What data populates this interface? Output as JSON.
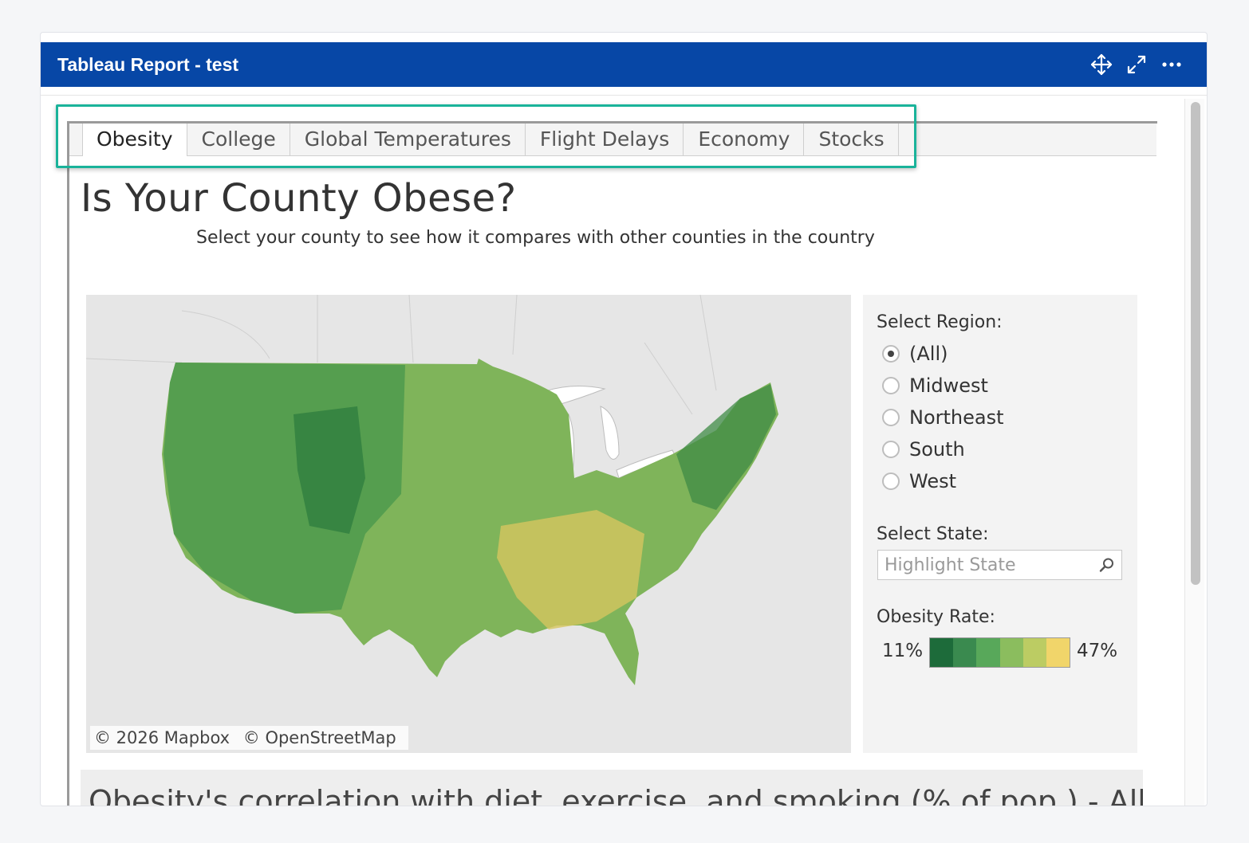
{
  "window": {
    "title": "Tableau Report - test",
    "icons": [
      "move-icon",
      "expand-icon",
      "more-icon"
    ]
  },
  "tabs": [
    {
      "label": "Obesity",
      "active": true
    },
    {
      "label": "College",
      "active": false
    },
    {
      "label": "Global Temperatures",
      "active": false
    },
    {
      "label": "Flight Delays",
      "active": false
    },
    {
      "label": "Economy",
      "active": false
    },
    {
      "label": "Stocks",
      "active": false
    }
  ],
  "dashboard": {
    "title": "Is Your County Obese?",
    "subtitle": "Select your county to see how it compares with other counties in the country",
    "map": {
      "attribution": [
        "© 2026 Mapbox",
        "© OpenStreetMap"
      ]
    },
    "filters": {
      "region_label": "Select Region:",
      "regions": [
        {
          "label": "(All)",
          "checked": true
        },
        {
          "label": "Midwest",
          "checked": false
        },
        {
          "label": "Northeast",
          "checked": false
        },
        {
          "label": "South",
          "checked": false
        },
        {
          "label": "West",
          "checked": false
        }
      ],
      "state_label": "Select State:",
      "state_placeholder": "Highlight State",
      "legend_label": "Obesity Rate:",
      "legend_min": "11%",
      "legend_max": "47%",
      "legend_colors": [
        "#1d6b3a",
        "#3a8a4f",
        "#58a85a",
        "#8bbd5e",
        "#bccc63",
        "#f1d56a"
      ]
    },
    "next_section_title": "Obesity's correlation with diet, exercise, and smoking (% of pop.) - All"
  },
  "colors": {
    "header_bg": "#0747a6",
    "highlight": "#1ab39a",
    "land": "#e6e6e6"
  }
}
